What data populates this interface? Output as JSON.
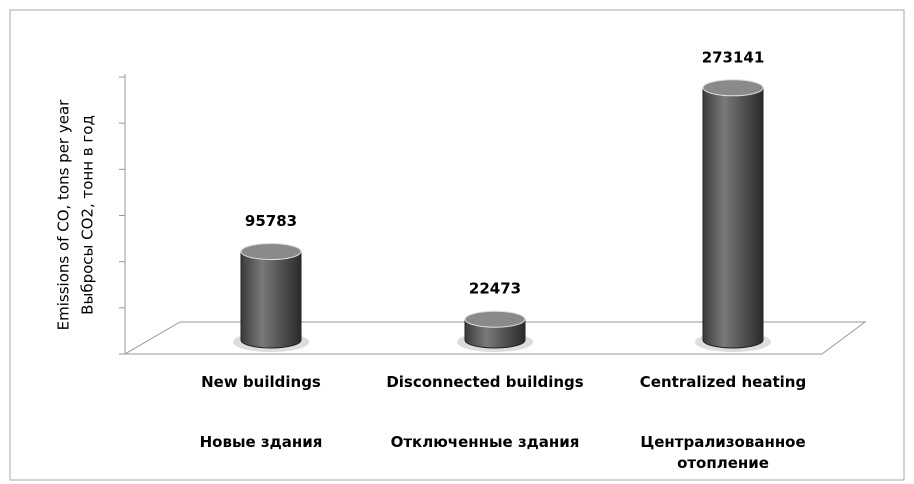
{
  "chart_data": {
    "type": "cylinder",
    "ylabel": [
      "Emissions of CO, tons per year",
      "Выбросы CO2, тонн в год"
    ],
    "categories": [
      "New buildings",
      "Disconnected buildings",
      "Centralized heating"
    ],
    "categories_ru": [
      "Новые здания",
      "Отключенные здания",
      "Централизованное отопление"
    ],
    "values": [
      95783,
      22473,
      273141
    ],
    "color": "#595959",
    "ylim": [
      0,
      300000
    ],
    "yticks": [
      0,
      50000,
      100000,
      150000,
      200000,
      250000,
      300000
    ]
  }
}
